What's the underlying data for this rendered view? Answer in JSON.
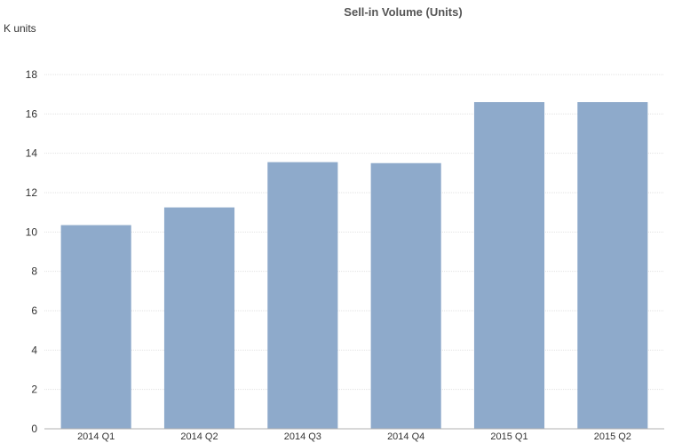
{
  "chart_data": {
    "type": "bar",
    "title": "Sell-in Volume (Units)",
    "ylabel": "K units",
    "xlabel": "",
    "categories": [
      "2014 Q1",
      "2014 Q2",
      "2014 Q3",
      "2014 Q4",
      "2015 Q1",
      "2015 Q2"
    ],
    "values": [
      10.35,
      11.25,
      13.55,
      13.5,
      16.6,
      16.6
    ],
    "ylim": [
      0,
      18
    ],
    "yticks": [
      0,
      2,
      4,
      6,
      8,
      10,
      12,
      14,
      16,
      18
    ],
    "grid": true,
    "legend": "none",
    "colors": {
      "bar": "#8eaacb",
      "grid": "#e3e3e3",
      "axis": "#b0b0b0"
    }
  }
}
